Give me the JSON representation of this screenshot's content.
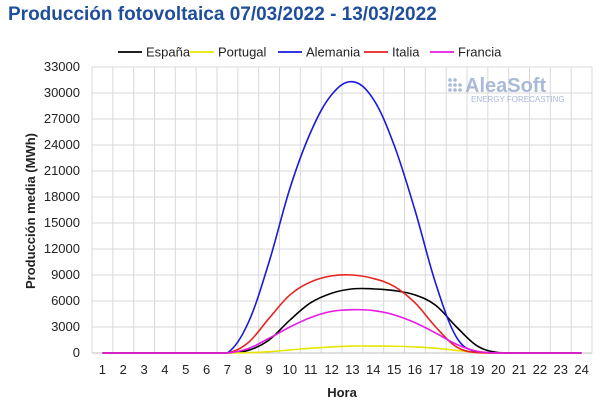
{
  "chart_data": {
    "type": "line",
    "title": "Producción fotovoltaica 07/03/2022 - 13/03/2022",
    "xlabel": "Hora",
    "ylabel": "Producción media (MWh)",
    "x": [
      1,
      2,
      3,
      4,
      5,
      6,
      7,
      8,
      9,
      10,
      11,
      12,
      13,
      14,
      15,
      16,
      17,
      18,
      19,
      20,
      21,
      22,
      23,
      24
    ],
    "ylim": [
      0,
      33000
    ],
    "yticks": [
      0,
      3000,
      6000,
      9000,
      12000,
      15000,
      18000,
      21000,
      24000,
      27000,
      30000,
      33000
    ],
    "grid": true,
    "legend_position": "top",
    "series": [
      {
        "name": "España",
        "color": "#000000",
        "values": [
          0,
          0,
          0,
          0,
          0,
          0,
          0,
          300,
          1500,
          3800,
          5800,
          6900,
          7400,
          7400,
          7200,
          6700,
          5500,
          3000,
          800,
          50,
          0,
          0,
          0,
          0
        ]
      },
      {
        "name": "Portugal",
        "color": "#e6e600",
        "values": [
          0,
          0,
          0,
          0,
          0,
          0,
          0,
          30,
          150,
          350,
          550,
          700,
          800,
          800,
          780,
          700,
          550,
          300,
          80,
          0,
          0,
          0,
          0,
          0
        ]
      },
      {
        "name": "Alemania",
        "color": "#1a1adb",
        "values": [
          0,
          0,
          0,
          0,
          0,
          0,
          0,
          3500,
          10500,
          19000,
          25500,
          29800,
          31300,
          29300,
          24000,
          16500,
          8000,
          1800,
          100,
          0,
          0,
          0,
          0,
          0
        ]
      },
      {
        "name": "Italia",
        "color": "#e6231f",
        "values": [
          0,
          0,
          0,
          0,
          0,
          0,
          0,
          1200,
          4000,
          6700,
          8200,
          8900,
          9000,
          8600,
          7700,
          5800,
          3000,
          700,
          30,
          0,
          0,
          0,
          0,
          0
        ]
      },
      {
        "name": "Francia",
        "color": "#e619e6",
        "values": [
          0,
          0,
          0,
          0,
          0,
          0,
          0,
          500,
          1700,
          3000,
          4100,
          4800,
          5000,
          4900,
          4400,
          3500,
          2300,
          1000,
          200,
          0,
          0,
          0,
          0,
          0
        ]
      }
    ]
  },
  "logo": {
    "name": "AleaSoft",
    "subtitle": "ENERGY FORECASTING"
  }
}
